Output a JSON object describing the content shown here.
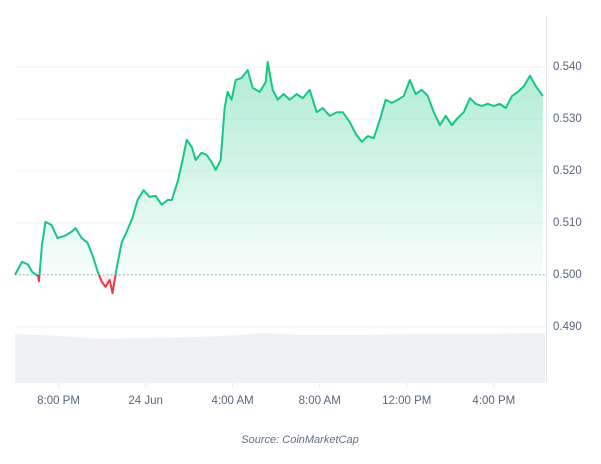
{
  "chart_data": {
    "type": "line",
    "x": [
      18.0,
      18.32,
      18.6,
      18.78,
      19.06,
      19.1,
      19.24,
      19.4,
      19.68,
      19.95,
      20.28,
      20.6,
      20.78,
      21.06,
      21.33,
      21.6,
      21.8,
      21.98,
      22.16,
      22.35,
      22.48,
      22.67,
      22.9,
      23.13,
      23.4,
      23.63,
      23.91,
      24.18,
      24.46,
      24.74,
      25.01,
      25.2,
      25.47,
      25.7,
      25.89,
      26.12,
      26.3,
      26.57,
      26.8,
      27.03,
      27.22,
      27.45,
      27.63,
      27.77,
      27.95,
      28.14,
      28.41,
      28.69,
      28.92,
      29.24,
      29.52,
      29.61,
      29.84,
      30.07,
      30.34,
      30.62,
      30.94,
      31.22,
      31.54,
      31.86,
      32.14,
      32.46,
      32.78,
      33.06,
      33.38,
      33.66,
      33.93,
      34.21,
      34.48,
      34.76,
      35.03,
      35.31,
      35.59,
      35.86,
      36.14,
      36.41,
      36.69,
      36.97,
      37.24,
      37.52,
      37.79,
      38.07,
      38.34,
      38.62,
      38.9,
      39.17,
      39.45,
      39.72,
      40.0,
      40.28,
      40.55,
      40.83,
      41.1,
      41.38,
      41.66,
      41.93,
      42.25
    ],
    "values": [
      0.5,
      0.5025,
      0.502,
      0.5006,
      0.4998,
      0.4988,
      0.5058,
      0.5102,
      0.5096,
      0.5071,
      0.5075,
      0.5083,
      0.509,
      0.5071,
      0.5062,
      0.5033,
      0.5006,
      0.4987,
      0.4977,
      0.499,
      0.4965,
      0.5013,
      0.5062,
      0.5083,
      0.511,
      0.5144,
      0.5163,
      0.515,
      0.5152,
      0.5135,
      0.5144,
      0.5144,
      0.5179,
      0.5221,
      0.526,
      0.5246,
      0.5221,
      0.5235,
      0.5231,
      0.5217,
      0.5202,
      0.5221,
      0.5321,
      0.5352,
      0.5337,
      0.5375,
      0.5379,
      0.5394,
      0.536,
      0.5352,
      0.5371,
      0.541,
      0.5356,
      0.5337,
      0.5348,
      0.5337,
      0.5348,
      0.534,
      0.5356,
      0.5313,
      0.5321,
      0.5306,
      0.5313,
      0.5313,
      0.5294,
      0.5271,
      0.5256,
      0.5267,
      0.5263,
      0.5298,
      0.5337,
      0.5331,
      0.5337,
      0.5344,
      0.5375,
      0.5348,
      0.5356,
      0.5344,
      0.5313,
      0.5288,
      0.5306,
      0.5288,
      0.5302,
      0.5313,
      0.534,
      0.5329,
      0.5325,
      0.5329,
      0.5325,
      0.5329,
      0.5321,
      0.5344,
      0.5352,
      0.5363,
      0.5383,
      0.5363,
      0.5344
    ],
    "baseline": 0.5,
    "color_up": "#16c784",
    "color_down": "#ea3943",
    "xlim": [
      18,
      42.35
    ],
    "xticks": [
      {
        "value": 20,
        "label": "8:00 PM"
      },
      {
        "value": 24,
        "label": "24 Jun"
      },
      {
        "value": 28,
        "label": "4:00 AM"
      },
      {
        "value": 32,
        "label": "8:00 AM"
      },
      {
        "value": 36,
        "label": "12:00 PM"
      },
      {
        "value": 40,
        "label": "4:00 PM"
      }
    ],
    "ylim": [
      0.4792,
      0.55
    ],
    "yticks": [
      {
        "value": 0.49,
        "label": "0.490"
      },
      {
        "value": 0.5,
        "label": "0.500"
      },
      {
        "value": 0.51,
        "label": "0.510"
      },
      {
        "value": 0.52,
        "label": "0.520"
      },
      {
        "value": 0.53,
        "label": "0.530"
      },
      {
        "value": 0.54,
        "label": "0.540"
      }
    ],
    "grid": true,
    "source": "Source: CoinMarketCap"
  }
}
